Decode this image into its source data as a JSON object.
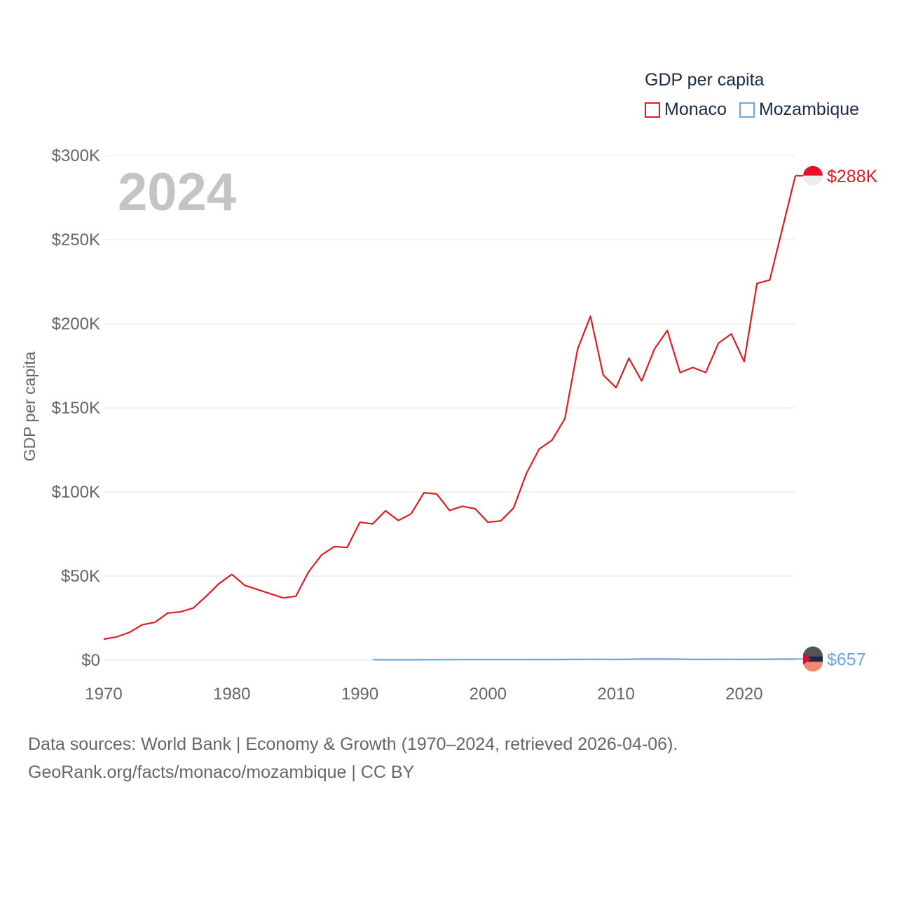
{
  "chart_data": {
    "type": "line",
    "title": "GDP per capita",
    "xlabel": "",
    "ylabel": "GDP per capita",
    "year_display": "2024",
    "xlim": [
      1970,
      2024
    ],
    "ylim": [
      0,
      300000
    ],
    "x_ticks": [
      {
        "value": 1970,
        "label": "1970"
      },
      {
        "value": 1980,
        "label": "1980"
      },
      {
        "value": 1990,
        "label": "1990"
      },
      {
        "value": 2000,
        "label": "2000"
      },
      {
        "value": 2010,
        "label": "2010"
      },
      {
        "value": 2020,
        "label": "2020"
      }
    ],
    "y_ticks": [
      {
        "value": 0,
        "label": "$0"
      },
      {
        "value": 50000,
        "label": "$50K"
      },
      {
        "value": 100000,
        "label": "$100K"
      },
      {
        "value": 150000,
        "label": "$150K"
      },
      {
        "value": 200000,
        "label": "$200K"
      },
      {
        "value": 250000,
        "label": "$250K"
      },
      {
        "value": 300000,
        "label": "$300K"
      }
    ],
    "grid": true,
    "legend_position": "top-right",
    "series": [
      {
        "name": "Monaco",
        "color": "#e01b22",
        "end_label": "$288K",
        "flag": "monaco-flag",
        "x": [
          1970,
          1971,
          1972,
          1973,
          1974,
          1975,
          1976,
          1977,
          1978,
          1979,
          1980,
          1981,
          1982,
          1983,
          1984,
          1985,
          1986,
          1987,
          1988,
          1989,
          1990,
          1991,
          1992,
          1993,
          1994,
          1995,
          1996,
          1997,
          1998,
          1999,
          2000,
          2001,
          2002,
          2003,
          2004,
          2005,
          2006,
          2007,
          2008,
          2009,
          2010,
          2011,
          2012,
          2013,
          2014,
          2015,
          2016,
          2017,
          2018,
          2019,
          2020,
          2021,
          2022,
          2023,
          2024
        ],
        "values": [
          12500,
          13800,
          16500,
          21000,
          22500,
          28000,
          28700,
          31000,
          38000,
          45500,
          51000,
          44500,
          42000,
          39500,
          37000,
          38000,
          52500,
          62500,
          67500,
          67000,
          82000,
          81000,
          88800,
          83000,
          87000,
          99500,
          98800,
          89000,
          91500,
          90000,
          82000,
          82800,
          90500,
          111000,
          125500,
          130800,
          143500,
          185000,
          204500,
          169500,
          162000,
          179500,
          166000,
          185000,
          196000,
          171000,
          174000,
          171000,
          188500,
          194000,
          177500,
          224000,
          226000,
          257000,
          288000
        ]
      },
      {
        "name": "Mozambique",
        "color": "#6aa7e0",
        "end_label": "$657",
        "flag": "mozambique-flag",
        "x": [
          1991,
          1992,
          1993,
          1994,
          1995,
          1996,
          1997,
          1998,
          1999,
          2000,
          2001,
          2002,
          2003,
          2004,
          2005,
          2006,
          2007,
          2008,
          2009,
          2010,
          2011,
          2012,
          2013,
          2014,
          2015,
          2016,
          2017,
          2018,
          2019,
          2020,
          2021,
          2022,
          2023,
          2024
        ],
        "values": [
          250,
          200,
          210,
          220,
          240,
          260,
          300,
          320,
          330,
          330,
          330,
          320,
          330,
          360,
          390,
          410,
          440,
          520,
          490,
          430,
          530,
          650,
          680,
          670,
          610,
          420,
          440,
          490,
          500,
          450,
          500,
          580,
          620,
          657
        ]
      }
    ]
  },
  "legend": {
    "title": "GDP per capita",
    "items": [
      "Monaco",
      "Mozambique"
    ]
  },
  "footer": {
    "line1": "Data sources: World Bank | Economy & Growth (1970–2024, retrieved 2026-04-06).",
    "line2": "GeoRank.org/facts/monaco/mozambique | CC BY"
  }
}
